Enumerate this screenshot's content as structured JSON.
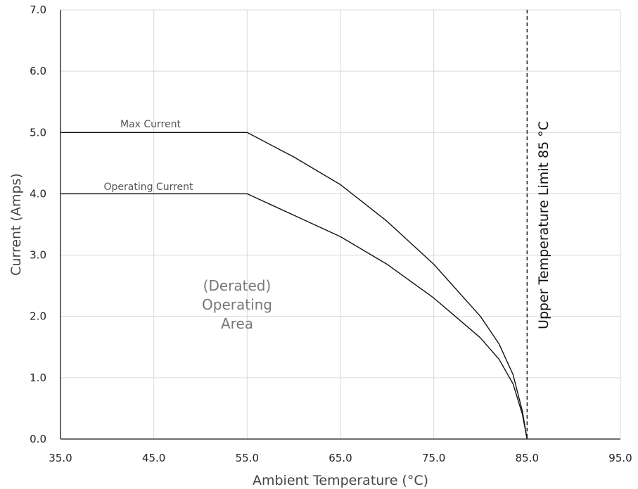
{
  "chart_data": {
    "type": "line",
    "xlabel": "Ambient Temperature (°C)",
    "ylabel": "Current (Amps)",
    "xlim": [
      35,
      95
    ],
    "ylim": [
      0,
      7
    ],
    "x_ticks": [
      "35.0",
      "45.0",
      "55.0",
      "65.0",
      "75.0",
      "85.0",
      "95.0"
    ],
    "y_ticks": [
      "0.0",
      "1.0",
      "2.0",
      "3.0",
      "4.0",
      "5.0",
      "6.0",
      "7.0"
    ],
    "grid": true,
    "series": [
      {
        "name": "Max Current",
        "color": "#111111",
        "points": [
          [
            35,
            5.0
          ],
          [
            55,
            5.0
          ],
          [
            60,
            4.6
          ],
          [
            65,
            4.15
          ],
          [
            70,
            3.55
          ],
          [
            75,
            2.85
          ],
          [
            80,
            2.0
          ],
          [
            82,
            1.55
          ],
          [
            83.5,
            1.05
          ],
          [
            84.5,
            0.45
          ],
          [
            85,
            0.0
          ]
        ]
      },
      {
        "name": "Operating Current",
        "color": "#111111",
        "points": [
          [
            35,
            4.0
          ],
          [
            55,
            4.0
          ],
          [
            60,
            3.65
          ],
          [
            65,
            3.3
          ],
          [
            70,
            2.85
          ],
          [
            75,
            2.3
          ],
          [
            80,
            1.65
          ],
          [
            82,
            1.3
          ],
          [
            83.5,
            0.9
          ],
          [
            84.5,
            0.4
          ],
          [
            85,
            0.0
          ]
        ]
      }
    ],
    "annotations": {
      "area_lines": [
        "(Derated)",
        "Operating",
        "Area"
      ],
      "limit_label": "Upper Temperature Limit 85 °C",
      "limit_x": 85
    }
  }
}
